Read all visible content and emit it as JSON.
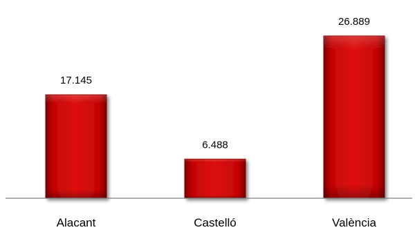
{
  "chart_data": {
    "type": "bar",
    "categories": [
      "Alacant",
      "Castelló",
      "València"
    ],
    "values": [
      17145,
      6488,
      26889
    ],
    "value_labels": [
      "17.145",
      "6.488",
      "26.889"
    ],
    "title": "",
    "xlabel": "",
    "ylabel": "",
    "ylim": [
      0,
      26889
    ],
    "grid": false,
    "legend": "none",
    "colors": {
      "bar_top": "#e11d1d",
      "bar_mid": "#c30000",
      "bar_edge": "#6f0000",
      "axis": "#808080"
    }
  }
}
